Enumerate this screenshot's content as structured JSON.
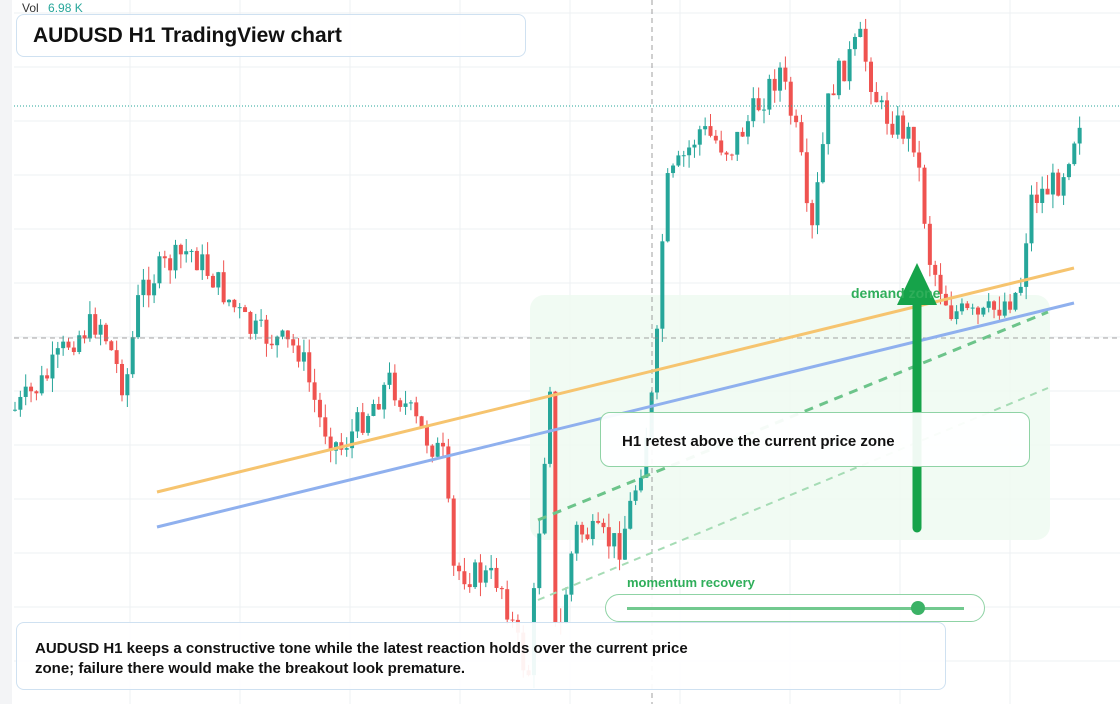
{
  "header": {
    "vol_label": "Vol",
    "vol_value": "6.98 K",
    "title": "AUDUSD H1 TradingView chart"
  },
  "annotations": {
    "zone": "demand zone",
    "retest": "H1 retest above the current price zone",
    "momentum": "momentum recovery"
  },
  "caption": "AUDUSD H1 keeps a constructive tone while the latest reaction holds over the current price zone; failure there would make the breakout look premature."
}
